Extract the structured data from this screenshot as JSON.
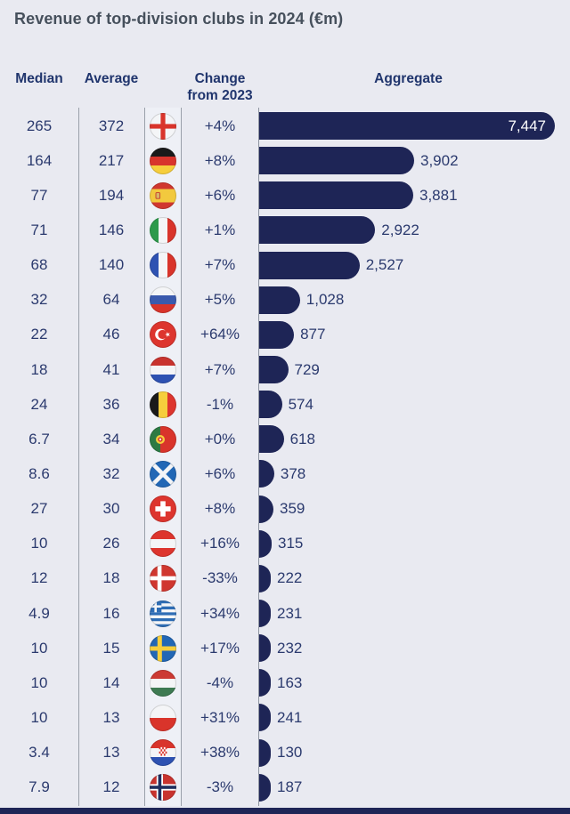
{
  "title": "Revenue of top-division clubs in 2024 (€m)",
  "columns": {
    "median": "Median",
    "average": "Average",
    "change_line1": "Change",
    "change_line2": "from 2023",
    "aggregate": "Aggregate"
  },
  "colors": {
    "background": "#e9eaf1",
    "bar": "#1e2556",
    "text": "#2b3a6e",
    "header_text": "#20356d",
    "title_text": "#46505c",
    "divider": "#9aa0aa",
    "bar_label_inside": "#ffffff",
    "footer_band": "#1e2556"
  },
  "rows": [
    {
      "country": "England",
      "flag": "england",
      "median": "265",
      "average": "372",
      "change": "+4%",
      "aggregate": 7447,
      "aggregate_label": "7,447"
    },
    {
      "country": "Germany",
      "flag": "germany",
      "median": "164",
      "average": "217",
      "change": "+8%",
      "aggregate": 3902,
      "aggregate_label": "3,902"
    },
    {
      "country": "Spain",
      "flag": "spain",
      "median": "77",
      "average": "194",
      "change": "+6%",
      "aggregate": 3881,
      "aggregate_label": "3,881"
    },
    {
      "country": "Italy",
      "flag": "italy",
      "median": "71",
      "average": "146",
      "change": "+1%",
      "aggregate": 2922,
      "aggregate_label": "2,922"
    },
    {
      "country": "France",
      "flag": "france",
      "median": "68",
      "average": "140",
      "change": "+7%",
      "aggregate": 2527,
      "aggregate_label": "2,527"
    },
    {
      "country": "Russia",
      "flag": "russia",
      "median": "32",
      "average": "64",
      "change": "+5%",
      "aggregate": 1028,
      "aggregate_label": "1,028"
    },
    {
      "country": "Turkey",
      "flag": "turkey",
      "median": "22",
      "average": "46",
      "change": "+64%",
      "aggregate": 877,
      "aggregate_label": "877"
    },
    {
      "country": "Netherlands",
      "flag": "netherlands",
      "median": "18",
      "average": "41",
      "change": "+7%",
      "aggregate": 729,
      "aggregate_label": "729"
    },
    {
      "country": "Belgium",
      "flag": "belgium",
      "median": "24",
      "average": "36",
      "change": "-1%",
      "aggregate": 574,
      "aggregate_label": "574"
    },
    {
      "country": "Portugal",
      "flag": "portugal",
      "median": "6.7",
      "average": "34",
      "change": "+0%",
      "aggregate": 618,
      "aggregate_label": "618"
    },
    {
      "country": "Scotland",
      "flag": "scotland",
      "median": "8.6",
      "average": "32",
      "change": "+6%",
      "aggregate": 378,
      "aggregate_label": "378"
    },
    {
      "country": "Switzerland",
      "flag": "switzerland",
      "median": "27",
      "average": "30",
      "change": "+8%",
      "aggregate": 359,
      "aggregate_label": "359"
    },
    {
      "country": "Austria",
      "flag": "austria",
      "median": "10",
      "average": "26",
      "change": "+16%",
      "aggregate": 315,
      "aggregate_label": "315"
    },
    {
      "country": "Denmark",
      "flag": "denmark",
      "median": "12",
      "average": "18",
      "change": "-33%",
      "aggregate": 222,
      "aggregate_label": "222"
    },
    {
      "country": "Greece",
      "flag": "greece",
      "median": "4.9",
      "average": "16",
      "change": "+34%",
      "aggregate": 231,
      "aggregate_label": "231"
    },
    {
      "country": "Sweden",
      "flag": "sweden",
      "median": "10",
      "average": "15",
      "change": "+17%",
      "aggregate": 232,
      "aggregate_label": "232"
    },
    {
      "country": "Hungary",
      "flag": "hungary",
      "median": "10",
      "average": "14",
      "change": "-4%",
      "aggregate": 163,
      "aggregate_label": "163"
    },
    {
      "country": "Poland",
      "flag": "poland",
      "median": "10",
      "average": "13",
      "change": "+31%",
      "aggregate": 241,
      "aggregate_label": "241"
    },
    {
      "country": "Croatia",
      "flag": "croatia",
      "median": "3.4",
      "average": "13",
      "change": "+38%",
      "aggregate": 130,
      "aggregate_label": "130"
    },
    {
      "country": "Norway",
      "flag": "norway",
      "median": "7.9",
      "average": "12",
      "change": "-3%",
      "aggregate": 187,
      "aggregate_label": "187"
    }
  ],
  "chart_data": {
    "type": "bar",
    "orientation": "horizontal",
    "title": "Revenue of top-division clubs in 2024 (€m)",
    "categories": [
      "England",
      "Germany",
      "Spain",
      "Italy",
      "France",
      "Russia",
      "Turkey",
      "Netherlands",
      "Belgium",
      "Portugal",
      "Scotland",
      "Switzerland",
      "Austria",
      "Denmark",
      "Greece",
      "Sweden",
      "Hungary",
      "Poland",
      "Croatia",
      "Norway"
    ],
    "series": [
      {
        "name": "Median",
        "values": [
          265,
          164,
          77,
          71,
          68,
          32,
          22,
          18,
          24,
          6.7,
          8.6,
          27,
          10,
          12,
          4.9,
          10,
          10,
          10,
          3.4,
          7.9
        ]
      },
      {
        "name": "Average",
        "values": [
          372,
          217,
          194,
          146,
          140,
          64,
          46,
          41,
          36,
          34,
          32,
          30,
          26,
          18,
          16,
          15,
          14,
          13,
          13,
          12
        ]
      },
      {
        "name": "Change from 2023 (%)",
        "values": [
          4,
          8,
          6,
          1,
          7,
          5,
          64,
          7,
          -1,
          0,
          6,
          8,
          16,
          -33,
          34,
          17,
          -4,
          31,
          38,
          -3
        ]
      },
      {
        "name": "Aggregate",
        "values": [
          7447,
          3902,
          3881,
          2922,
          2527,
          1028,
          877,
          729,
          574,
          618,
          378,
          359,
          315,
          222,
          231,
          232,
          163,
          241,
          130,
          187
        ]
      }
    ],
    "xlabel": "",
    "ylabel": "",
    "xlim": [
      0,
      7800
    ],
    "grid": false,
    "legend_position": "none",
    "bar_value_labels": true
  }
}
